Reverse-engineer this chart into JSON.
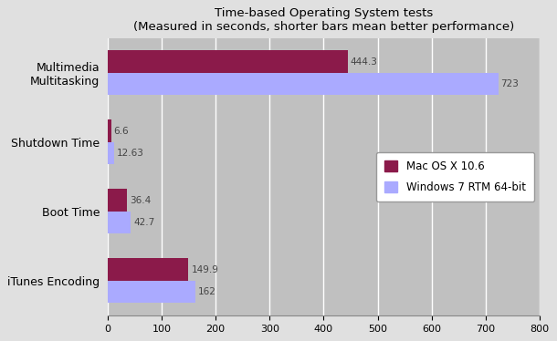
{
  "title_line1": "Time-based Operating System tests",
  "title_line2": "(Measured in seconds, shorter bars mean better performance)",
  "categories": [
    "Multimedia\nMultitasking",
    "Shutdown Time",
    "Boot Time",
    "iTunes Encoding"
  ],
  "mac_values": [
    444.3,
    6.6,
    36.4,
    149.9
  ],
  "win_values": [
    723,
    12.63,
    42.7,
    162
  ],
  "mac_labels": [
    "444.3",
    "6.6",
    "36.4",
    "149.9"
  ],
  "win_labels": [
    "723",
    "12.63",
    "42.7",
    "162"
  ],
  "mac_color": "#8B1A4A",
  "win_color": "#AAAAFF",
  "plot_bg_color": "#C0C0C0",
  "fig_bg_color": "#E0E0E0",
  "xlim": [
    0,
    800
  ],
  "xticks": [
    0,
    100,
    200,
    300,
    400,
    500,
    600,
    700,
    800
  ],
  "legend_mac": "Mac OS X 10.6",
  "legend_win": "Windows 7 RTM 64-bit",
  "bar_height": 0.32
}
